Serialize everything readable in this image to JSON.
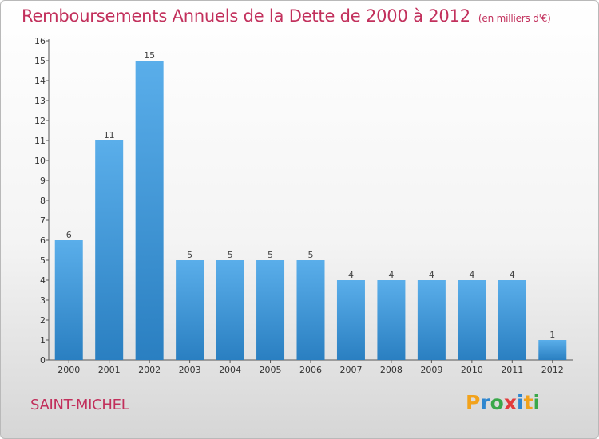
{
  "header": {
    "title": "Remboursements Annuels de la Dette de 2000 à 2012",
    "unit": "(en milliers d'€)"
  },
  "footer": {
    "commune": "SAINT-MICHEL",
    "logo": {
      "parts": [
        "P",
        "r",
        "o",
        "x",
        "i",
        "t",
        "i"
      ],
      "colors": [
        "#f2a21b",
        "#2e86cf",
        "#3aa84a",
        "#e23b3b",
        "#2e86cf",
        "#f2a21b",
        "#3aa84a"
      ]
    }
  },
  "chart_data": {
    "type": "bar",
    "title": "Remboursements Annuels de la Dette de 2000 à 2012",
    "xlabel": "",
    "ylabel": "",
    "categories": [
      "2000",
      "2001",
      "2002",
      "2003",
      "2004",
      "2005",
      "2006",
      "2007",
      "2008",
      "2009",
      "2010",
      "2011",
      "2012"
    ],
    "values": [
      6,
      11,
      15,
      5,
      5,
      5,
      5,
      4,
      4,
      4,
      4,
      4,
      1
    ],
    "ylim": [
      0,
      16
    ],
    "yticks": [
      "0",
      "1",
      "2",
      "3",
      "4",
      "5",
      "6",
      "7",
      "8",
      "9",
      "10",
      "11",
      "12",
      "13",
      "14",
      "15",
      "16"
    ],
    "grid": false,
    "legend": "none",
    "bar_color_top": "#5aaeea",
    "bar_color_bottom": "#2a7fc1"
  }
}
